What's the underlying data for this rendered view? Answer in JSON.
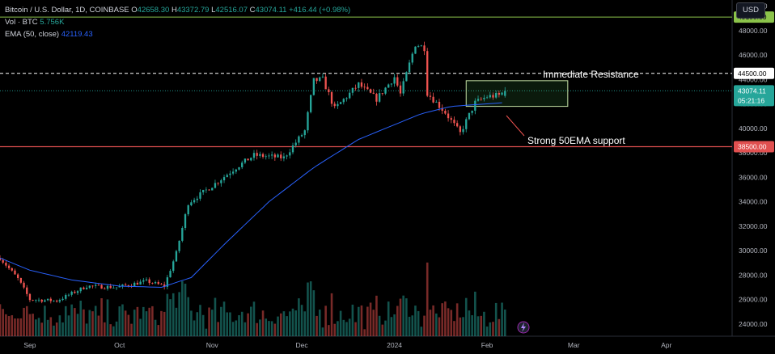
{
  "legend": {
    "symbol": "Bitcoin / U.S. Dollar, 1D, COINBASE",
    "o_label": "O",
    "o_val": "42658.30",
    "h_label": "H",
    "h_val": "43372.79",
    "l_label": "L",
    "l_val": "42516.07",
    "c_label": "C",
    "c_val": "43074.11",
    "chg": "+416.44 (+0.98%)",
    "vol_label": "Vol · BTC",
    "vol_val": "5.756K",
    "ema_label": "EMA (50, close)",
    "ema_val": "42119.43"
  },
  "currency_button": "USD",
  "tags": {
    "r1": "49100.00",
    "r2": "44500.00",
    "price": "43074.11",
    "countdown": "05:21:16",
    "s1": "38500.00"
  },
  "annotations": {
    "resistance": "Immediate Resistance",
    "support": "Strong 50EMA support"
  },
  "colors": {
    "up": "#26a69a",
    "down": "#ef5350",
    "ema": "#2962ff",
    "resistance_line": "#ffffff",
    "r1_line": "#8bc34a",
    "s1_line": "#e05050"
  },
  "chart_data": {
    "type": "candlestick",
    "title": "Bitcoin / U.S. Dollar, 1D, COINBASE",
    "ylim": [
      23000,
      50500
    ],
    "y_ticks": [
      "24000.00",
      "26000.00",
      "28000.00",
      "30000.00",
      "32000.00",
      "34000.00",
      "36000.00",
      "38000.00",
      "40000.00",
      "42000.00",
      "44000.00",
      "46000.00",
      "48000.00",
      "50000.00"
    ],
    "x_ticks": [
      "Sep",
      "Oct",
      "Nov",
      "Dec",
      "2024",
      "Feb",
      "Mar",
      "Apr"
    ],
    "x_tick_dates": [
      "2023-09-01",
      "2023-10-01",
      "2023-11-01",
      "2023-12-01",
      "2024-01-01",
      "2024-02-01",
      "2024-03-01",
      "2024-04-01"
    ],
    "x_range": [
      "2023-08-22",
      "2024-04-23"
    ],
    "horizontal_levels": [
      {
        "label": "49100.00",
        "value": 49100
      },
      {
        "label": "44500.00",
        "value": 44500
      },
      {
        "label": "38500.00",
        "value": 38500
      }
    ],
    "box": {
      "from": "2024-01-25",
      "to": "2024-02-28",
      "low": 41800,
      "high": 43900
    },
    "price_path": [
      [
        "2023-08-22",
        29400
      ],
      [
        "2023-08-28",
        27700
      ],
      [
        "2023-09-01",
        26000
      ],
      [
        "2023-09-10",
        25900
      ],
      [
        "2023-09-20",
        27100
      ],
      [
        "2023-09-30",
        27000
      ],
      [
        "2023-10-10",
        27500
      ],
      [
        "2023-10-16",
        27100
      ],
      [
        "2023-10-20",
        29800
      ],
      [
        "2023-10-24",
        33900
      ],
      [
        "2023-11-01",
        35300
      ],
      [
        "2023-11-09",
        36800
      ],
      [
        "2023-11-15",
        37800
      ],
      [
        "2023-11-25",
        37600
      ],
      [
        "2023-12-02",
        39800
      ],
      [
        "2023-12-05",
        43900
      ],
      [
        "2023-12-08",
        44000
      ],
      [
        "2023-12-12",
        41600
      ],
      [
        "2023-12-20",
        43600
      ],
      [
        "2023-12-26",
        42400
      ],
      [
        "2024-01-01",
        44200
      ],
      [
        "2024-01-03",
        42800
      ],
      [
        "2024-01-08",
        46900
      ],
      [
        "2024-01-11",
        46600
      ],
      [
        "2024-01-12",
        42900
      ],
      [
        "2024-01-18",
        41300
      ],
      [
        "2024-01-23",
        39600
      ],
      [
        "2024-01-28",
        42100
      ],
      [
        "2024-02-01",
        42600
      ],
      [
        "2024-02-05",
        42700
      ],
      [
        "2024-02-07",
        43074
      ]
    ],
    "ema_50_path": [
      [
        "2023-08-22",
        29400
      ],
      [
        "2023-09-01",
        28400
      ],
      [
        "2023-09-15",
        27600
      ],
      [
        "2023-10-01",
        27100
      ],
      [
        "2023-10-15",
        27000
      ],
      [
        "2023-10-25",
        27800
      ],
      [
        "2023-11-05",
        30500
      ],
      [
        "2023-11-20",
        34000
      ],
      [
        "2023-12-05",
        36800
      ],
      [
        "2023-12-20",
        39100
      ],
      [
        "2024-01-01",
        40300
      ],
      [
        "2024-01-10",
        41200
      ],
      [
        "2024-01-20",
        41800
      ],
      [
        "2024-02-01",
        42000
      ],
      [
        "2024-02-07",
        42119
      ]
    ],
    "volume_series": {
      "name": "Vol · BTC",
      "last": "5.756K"
    }
  }
}
